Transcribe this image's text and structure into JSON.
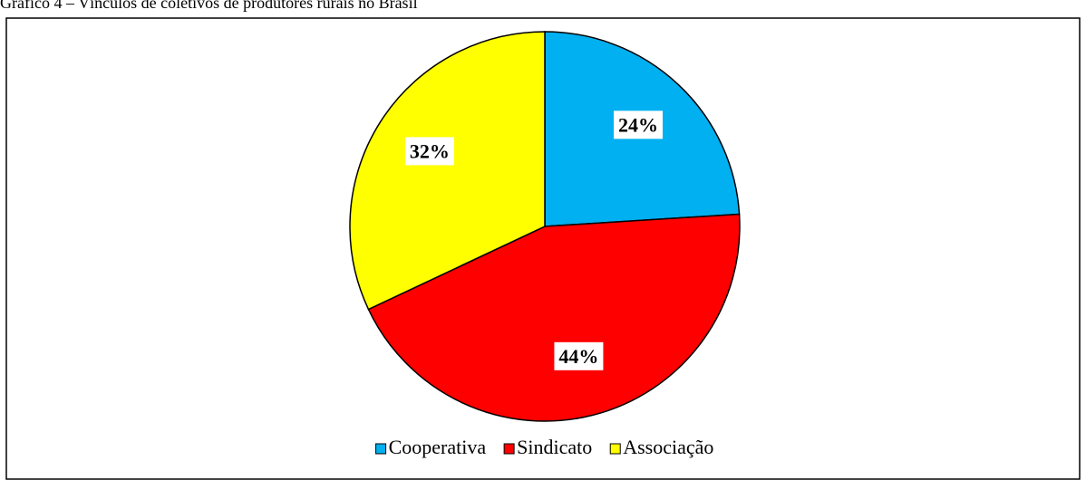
{
  "chart_data": {
    "type": "pie",
    "title": "Gráfico 4 – Vínculos de coletivos de produtores rurais no Brasil",
    "categories": [
      "Cooperativa",
      "Sindicato",
      "Associação"
    ],
    "values": [
      24,
      44,
      32
    ],
    "value_labels": [
      "24%",
      "44%",
      "32%"
    ],
    "colors": [
      "#00b0f0",
      "#ff0000",
      "#ffff00"
    ],
    "legend": "bottom"
  }
}
